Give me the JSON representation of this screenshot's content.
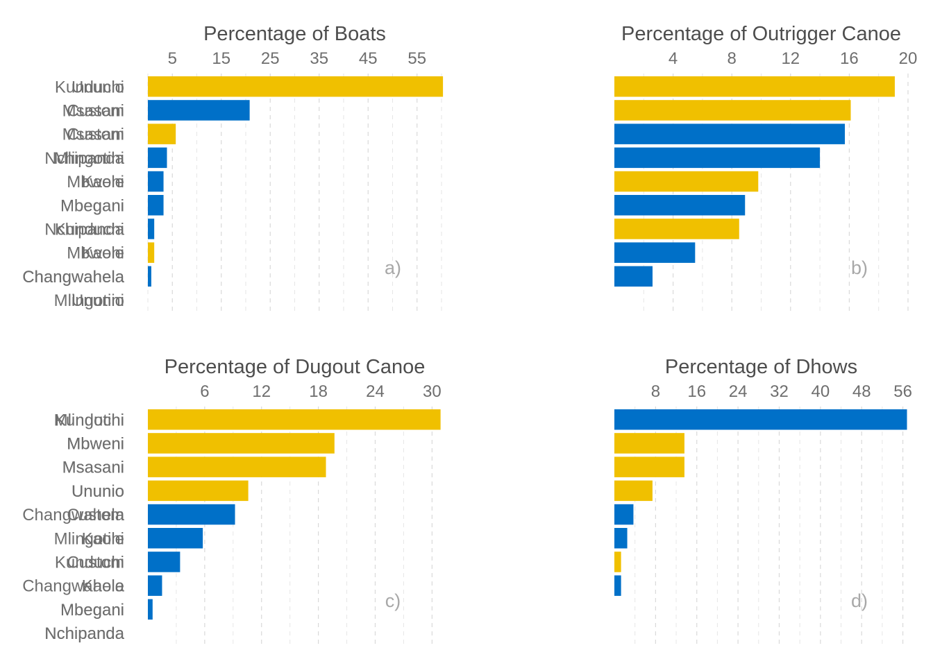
{
  "colors": {
    "yellow": "#f0c000",
    "blue": "#0070c8"
  },
  "chart_data": [
    {
      "type": "bar",
      "orientation": "horizontal",
      "title": "Percentage of Boats",
      "tag": "a)",
      "xlim": [
        0,
        60
      ],
      "ticks": [
        5,
        15,
        25,
        35,
        45,
        55
      ],
      "categories": [
        "Kunduchi",
        "Custom",
        "Msasani",
        "Mlingotini",
        "Kaole",
        "Mbegani",
        "Nchipanda",
        "Mbweni",
        "Changwahela",
        "Ununio"
      ],
      "values": [
        60.3,
        20.8,
        5.7,
        3.9,
        3.2,
        3.2,
        1.3,
        1.3,
        0.7,
        0
      ],
      "bar_colors": [
        "yellow",
        "blue",
        "yellow",
        "blue",
        "blue",
        "blue",
        "blue",
        "yellow",
        "blue",
        "yellow"
      ]
    },
    {
      "type": "bar",
      "orientation": "horizontal",
      "title": "Percentage of Outrigger Canoe",
      "tag": "b)",
      "xlim": [
        0,
        20
      ],
      "ticks": [
        4,
        8,
        12,
        16,
        20
      ],
      "categories": [
        "Ununio",
        "Msasani",
        "Custom",
        "Nchipanda",
        "Mbweni",
        "Mbegani",
        "Kunduchi",
        "Kaole",
        "Changwahela",
        "Mlingotini"
      ],
      "values": [
        19.1,
        16.1,
        15.7,
        14.0,
        9.8,
        8.9,
        8.5,
        5.5,
        2.6,
        0
      ],
      "bar_colors": [
        "yellow",
        "yellow",
        "blue",
        "blue",
        "yellow",
        "blue",
        "yellow",
        "blue",
        "blue",
        "blue"
      ]
    },
    {
      "type": "bar",
      "orientation": "horizontal",
      "title": "Percentage of Dugout Canoe",
      "tag": "c)",
      "xlim": [
        0,
        31
      ],
      "ticks": [
        6,
        12,
        18,
        24,
        30
      ],
      "categories": [
        "Kunduchi",
        "Mbweni",
        "Msasani",
        "Ununio",
        "Changwahela",
        "Mlingotini",
        "Custom",
        "Kaole",
        "Mbegani",
        "Nchipanda"
      ],
      "values": [
        30.9,
        19.7,
        18.8,
        10.6,
        9.2,
        5.8,
        3.4,
        1.5,
        0.5,
        0
      ],
      "bar_colors": [
        "yellow",
        "yellow",
        "yellow",
        "yellow",
        "blue",
        "blue",
        "blue",
        "blue",
        "blue",
        "blue"
      ]
    },
    {
      "type": "bar",
      "orientation": "horizontal",
      "title": "Percentage of Dhows",
      "tag": "d)",
      "xlim": [
        0,
        57
      ],
      "ticks": [
        8,
        16,
        24,
        32,
        40,
        48,
        56
      ],
      "categories": [
        "Mlingotini",
        "Mbweni",
        "Msasani",
        "Ununio",
        "Custom",
        "Kaole",
        "Kunduchi",
        "Changwahela",
        "Mbegani",
        "Nchipanda"
      ],
      "values": [
        56.8,
        13.6,
        13.6,
        7.4,
        3.7,
        2.5,
        1.3,
        1.3,
        0,
        0
      ],
      "bar_colors": [
        "blue",
        "yellow",
        "yellow",
        "yellow",
        "blue",
        "blue",
        "yellow",
        "blue",
        "blue",
        "blue"
      ]
    }
  ]
}
